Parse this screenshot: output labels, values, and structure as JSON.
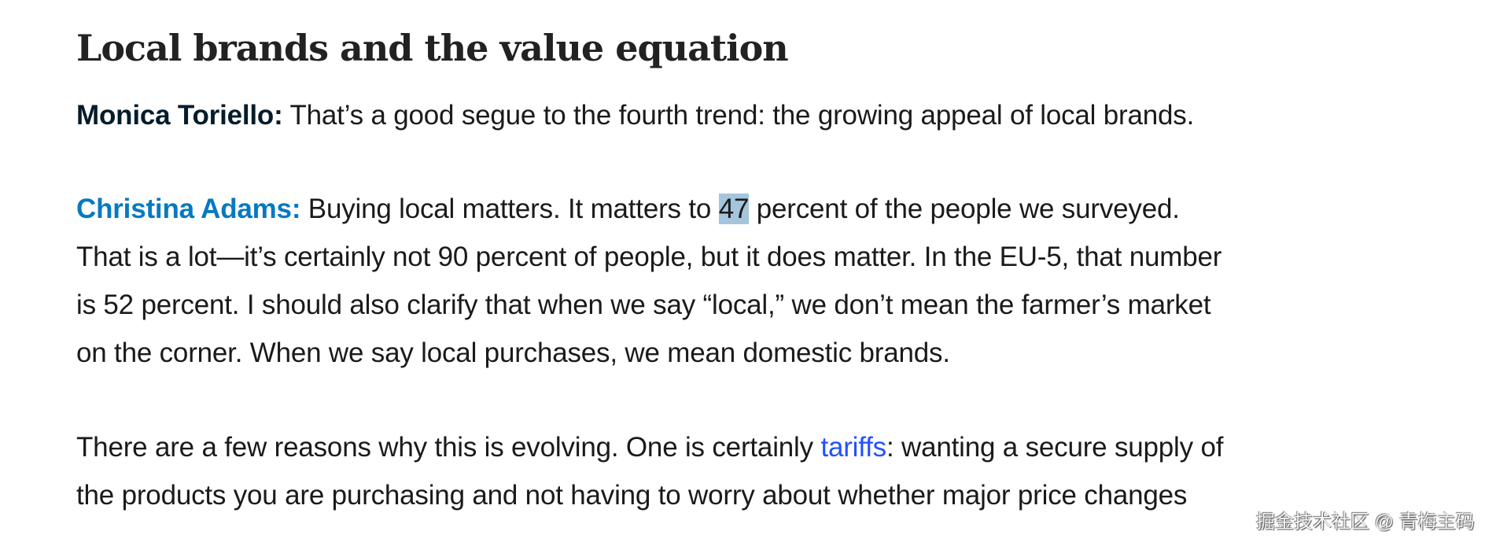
{
  "heading": "Local brands and the value equation",
  "p1": {
    "speaker": "Monica Toriello:",
    "text": " That’s a good segue to the fourth trend: the growing appeal of local brands."
  },
  "p2": {
    "speaker": "Christina Adams:",
    "line1_a": " Buying local matters. It matters to ",
    "highlight": "47",
    "line1_b": " percent of the people we surveyed.",
    "line2": "That is a lot—it’s certainly not 90 percent of people, but it does matter. In the EU-5, that number",
    "line3": "is 52 percent. I should also clarify that when we say “local,” we don’t mean the farmer’s market",
    "line4": "on the corner. When we say local purchases, we mean domestic brands."
  },
  "p3": {
    "line1_a": "There are a few reasons why this is evolving. One is certainly ",
    "link": "tariffs",
    "line1_b": ": wanting a secure supply of",
    "line2": "the products you are purchasing and not having to worry about whether major price changes"
  },
  "watermark": "掘金技术社区 @ 青梅主码",
  "colors": {
    "speaker1": "#051c2c",
    "speaker2": "#0679c2",
    "link": "#2251ff",
    "highlight": "#a4c5dc"
  }
}
